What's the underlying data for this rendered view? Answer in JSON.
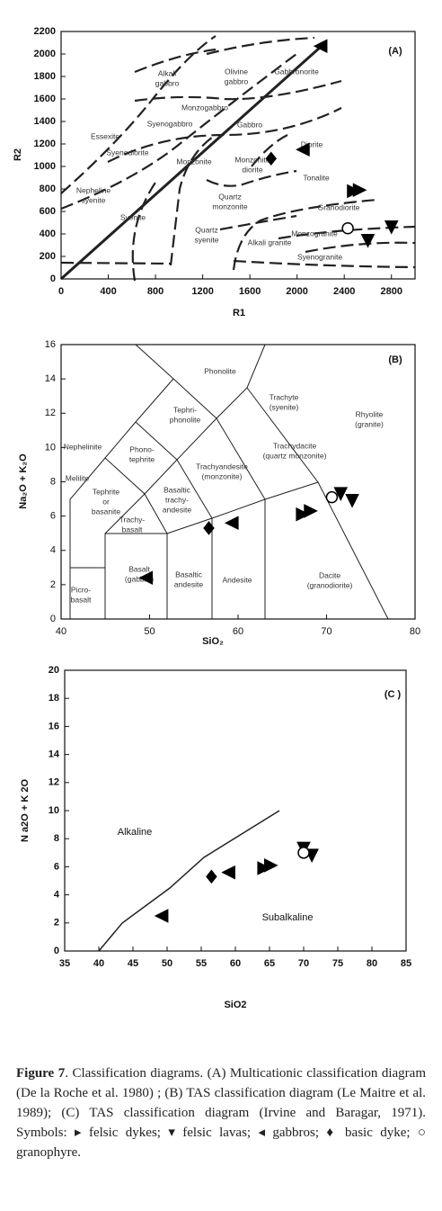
{
  "chart_data": [
    {
      "type": "scatter",
      "panel": "(A)",
      "xlabel": "R1",
      "ylabel": "R2",
      "xlim": [
        0,
        3000
      ],
      "ylim": [
        0,
        2200
      ],
      "xticks": [
        0,
        400,
        800,
        1200,
        1600,
        2000,
        2400,
        2800
      ],
      "yticks": [
        0,
        200,
        400,
        600,
        800,
        1000,
        1200,
        1400,
        1600,
        1800,
        2000,
        2200
      ],
      "labels": [
        [
          "Alkali",
          "gabbro"
        ],
        [
          "Olivine",
          "gabbro"
        ],
        [
          "Gabbronorite"
        ],
        [
          "Essexite"
        ],
        [
          "Syenogabbro"
        ],
        [
          "Gabbro"
        ],
        [
          "Syenodiorite"
        ],
        [
          "Monzogabbro"
        ],
        [
          "Diorite"
        ],
        [
          "Monzonite"
        ],
        [
          "Monzonite",
          "diorite"
        ],
        [
          "Nepheline",
          "syenite"
        ],
        [
          "Tonalite"
        ],
        [
          "Quartz",
          "monzonite"
        ],
        [
          "Syenite"
        ],
        [
          "Granodiorite"
        ],
        [
          "Monzogranite"
        ],
        [
          "Syenogranite"
        ],
        [
          "Quartz",
          "syenite"
        ],
        [
          "Alkali granite"
        ]
      ],
      "series": [
        {
          "marker": "right",
          "color": "#000",
          "x": [
            2480,
            2530
          ],
          "y": [
            780,
            790
          ]
        },
        {
          "marker": "down",
          "color": "#000",
          "x": [
            2800,
            2600
          ],
          "y": [
            460,
            340
          ]
        },
        {
          "marker": "left",
          "color": "#000",
          "x": [
            2200,
            2050
          ],
          "y": [
            2070,
            1150
          ]
        },
        {
          "marker": "diamond",
          "color": "#000",
          "x": [
            1780
          ],
          "y": [
            1070
          ]
        },
        {
          "marker": "circle",
          "color": "#000",
          "x": [
            2430
          ],
          "y": [
            450
          ]
        }
      ]
    },
    {
      "type": "scatter",
      "panel": "(B)",
      "xlabel": "SiO₂",
      "ylabel": "Na₂O + K₂O",
      "xlim": [
        40,
        80
      ],
      "ylim": [
        0,
        16
      ],
      "xticks": [
        40,
        50,
        60,
        70,
        80
      ],
      "yticks": [
        0,
        2,
        4,
        6,
        8,
        10,
        12,
        14,
        16
      ],
      "labels": [
        [
          "Phonolite"
        ],
        [
          "Tephri-",
          "phonolite"
        ],
        [
          "Trachyte",
          "(syenite)"
        ],
        [
          "Rhyolite",
          "(granite)"
        ],
        [
          "Nephelinite"
        ],
        [
          "Phono-",
          "tephrite"
        ],
        [
          "Trachyandesite",
          "(monzonite)"
        ],
        [
          "Trachydacite",
          "(quartz monzonite)"
        ],
        [
          "Melilite"
        ],
        [
          "Tephrite",
          "or",
          "basanite"
        ],
        [
          "Basaltic",
          "trachy-",
          "andesite"
        ],
        [
          "Trachy-",
          "basalt"
        ],
        [
          "Basalt",
          "(gabbro)"
        ],
        [
          "Basaltic",
          "andesite"
        ],
        [
          "Andesite"
        ],
        [
          "Dacite",
          "(granodiorite)"
        ],
        [
          "Picro-",
          "basalt"
        ]
      ],
      "series": [
        {
          "marker": "right",
          "color": "#000",
          "x": [
            67.3,
            68.2
          ],
          "y": [
            6.1,
            6.3
          ]
        },
        {
          "marker": "down",
          "color": "#000",
          "x": [
            71.6,
            72.9
          ],
          "y": [
            7.3,
            6.9
          ]
        },
        {
          "marker": "left",
          "color": "#000",
          "x": [
            49.6,
            59.3
          ],
          "y": [
            2.4,
            5.6
          ]
        },
        {
          "marker": "diamond",
          "color": "#000",
          "x": [
            56.7
          ],
          "y": [
            5.3
          ]
        },
        {
          "marker": "circle",
          "color": "#000",
          "x": [
            70.6
          ],
          "y": [
            7.1
          ]
        }
      ]
    },
    {
      "type": "scatter",
      "panel": "(C )",
      "xlabel": "SiO2",
      "ylabel": "N a2O + K 2O",
      "xlim": [
        35,
        85
      ],
      "ylim": [
        0,
        20
      ],
      "xticks": [
        35,
        40,
        45,
        50,
        55,
        60,
        65,
        70,
        75,
        80,
        85
      ],
      "yticks": [
        0,
        2,
        4,
        6,
        8,
        10,
        12,
        14,
        16,
        18,
        20
      ],
      "labels": [
        [
          "Alkaline"
        ],
        [
          "Subalkaline"
        ]
      ],
      "series": [
        {
          "marker": "right",
          "color": "#000",
          "x": [
            64.2,
            65.2
          ],
          "y": [
            5.9,
            6.1
          ]
        },
        {
          "marker": "down",
          "color": "#000",
          "x": [
            70,
            71.2
          ],
          "y": [
            7.3,
            6.8
          ]
        },
        {
          "marker": "left",
          "color": "#000",
          "x": [
            49.2,
            59
          ],
          "y": [
            2.5,
            5.6
          ]
        },
        {
          "marker": "diamond",
          "color": "#000",
          "x": [
            56.5
          ],
          "y": [
            5.3
          ]
        },
        {
          "marker": "circle",
          "color": "#000",
          "x": [
            70
          ],
          "y": [
            7
          ]
        }
      ]
    }
  ],
  "caption": {
    "label": "Figure 7",
    "text": ". Classification diagrams. (A) Multicationic classification diagram (De la Roche et al. 1980) ; (B) TAS classification diagram (Le Maitre et al. 1989);  (C) TAS classification diagram (Irvine and Baragar, 1971). Symbols: ▸ felsic dykes; ▾ felsic lavas; ◂ gabbros; ♦ basic dyke; ○ granophyre."
  }
}
